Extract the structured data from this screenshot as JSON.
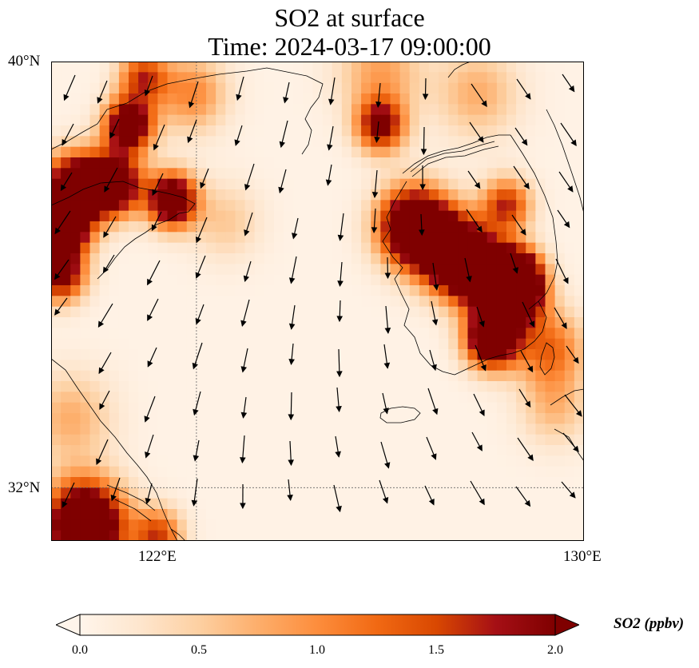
{
  "title": {
    "line1": "SO2 at surface",
    "line2": "Time: 2024-03-17 09:00:00"
  },
  "map": {
    "extent": {
      "lon_min": 119,
      "lon_max": 130,
      "lat_min": 31,
      "lat_max": 40
    },
    "gridlines": {
      "lon": [
        122
      ],
      "lat": [
        32
      ]
    },
    "lat_labels": [
      "40°N",
      "32°N"
    ],
    "lon_labels": [
      "122°E",
      "130°E"
    ],
    "field_name": "SO2",
    "field_max": 2.0,
    "hotspots": [
      {
        "lon": 120.9,
        "lat": 39.7,
        "amp": 1.5,
        "sigma": 0.35
      },
      {
        "lon": 120.6,
        "lat": 38.8,
        "amp": 2.6,
        "sigma": 0.35
      },
      {
        "lon": 121.9,
        "lat": 39.4,
        "amp": 1.0,
        "sigma": 0.5
      },
      {
        "lon": 119.5,
        "lat": 37.6,
        "amp": 3.0,
        "sigma": 0.45
      },
      {
        "lon": 120.3,
        "lat": 37.7,
        "amp": 2.6,
        "sigma": 0.4
      },
      {
        "lon": 121.5,
        "lat": 37.4,
        "amp": 2.8,
        "sigma": 0.35
      },
      {
        "lon": 119.3,
        "lat": 36.8,
        "amp": 2.4,
        "sigma": 0.35
      },
      {
        "lon": 119.2,
        "lat": 36.0,
        "amp": 2.2,
        "sigma": 0.35
      },
      {
        "lon": 125.8,
        "lat": 38.8,
        "amp": 2.0,
        "sigma": 0.35
      },
      {
        "lon": 126.5,
        "lat": 36.9,
        "amp": 3.2,
        "sigma": 0.5
      },
      {
        "lon": 127.3,
        "lat": 36.4,
        "amp": 2.8,
        "sigma": 0.5
      },
      {
        "lon": 127.9,
        "lat": 36.0,
        "amp": 2.4,
        "sigma": 0.45
      },
      {
        "lon": 128.6,
        "lat": 35.6,
        "amp": 2.6,
        "sigma": 0.4
      },
      {
        "lon": 128.6,
        "lat": 36.0,
        "amp": 2.6,
        "sigma": 0.35
      },
      {
        "lon": 128.1,
        "lat": 34.8,
        "amp": 3.0,
        "sigma": 0.38
      },
      {
        "lon": 128.4,
        "lat": 37.3,
        "amp": 1.6,
        "sigma": 0.35
      },
      {
        "lon": 129.3,
        "lat": 34.6,
        "amp": 1.2,
        "sigma": 0.5
      },
      {
        "lon": 119.7,
        "lat": 31.3,
        "amp": 3.5,
        "sigma": 0.55
      },
      {
        "lon": 121.2,
        "lat": 31.1,
        "amp": 1.5,
        "sigma": 0.35
      },
      {
        "lon": 125.8,
        "lat": 39.8,
        "amp": 0.8,
        "sigma": 0.6
      },
      {
        "lon": 127.8,
        "lat": 39.4,
        "amp": 0.7,
        "sigma": 0.6
      },
      {
        "lon": 122.6,
        "lat": 37.0,
        "amp": 0.5,
        "sigma": 0.5
      },
      {
        "lon": 129.4,
        "lat": 33.5,
        "amp": 0.6,
        "sigma": 0.5
      },
      {
        "lon": 119.4,
        "lat": 33.3,
        "amp": 0.7,
        "sigma": 0.6
      }
    ]
  },
  "colorbar": {
    "min": 0.0,
    "max": 2.0,
    "ticks": [
      "0.0",
      "0.5",
      "1.0",
      "1.5",
      "2.0"
    ],
    "colors": [
      "#fff5eb",
      "#fee6ce",
      "#fdd0a2",
      "#fdae6b",
      "#fd8d3c",
      "#f16913",
      "#d94801",
      "#a50f15",
      "#7f0000"
    ],
    "unit_label": "SO2 (ppbv)"
  }
}
